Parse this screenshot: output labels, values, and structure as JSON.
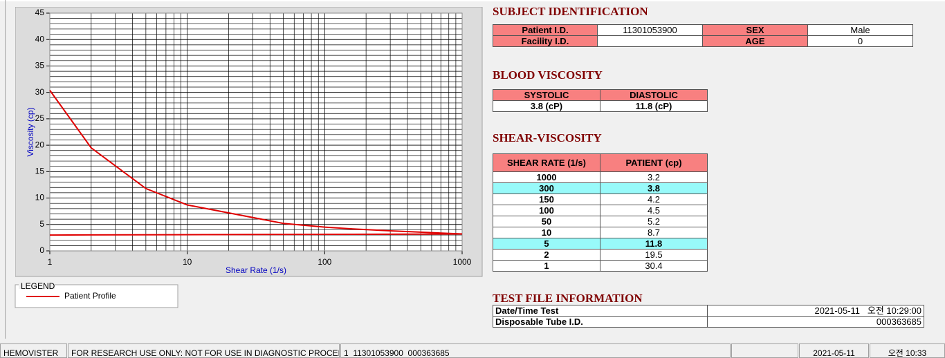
{
  "chart_data": {
    "type": "line",
    "x_label": "Shear Rate (1/s)",
    "y_label": "Viscosity (cp)",
    "xlim": [
      1,
      1000
    ],
    "xticks": [
      1,
      10,
      100,
      1000
    ],
    "xlog": true,
    "ylim": [
      0,
      45
    ],
    "yticks": [
      0,
      5,
      10,
      15,
      20,
      25,
      30,
      35,
      40,
      45
    ],
    "grid": true,
    "minor_grid": true,
    "legend": {
      "title": "LEGEND"
    },
    "series": [
      {
        "name": "Patient Profile",
        "color": "#e00000",
        "x": [
          1,
          2,
          5,
          10,
          50,
          100,
          150,
          300,
          1000
        ],
        "values": [
          30.4,
          19.5,
          11.8,
          8.7,
          5.2,
          4.5,
          4.2,
          3.8,
          3.2
        ]
      },
      {
        "color": "#e00000",
        "x": [
          1,
          1000
        ],
        "values": [
          3.0,
          3.2
        ]
      }
    ]
  },
  "subject": {
    "title": "SUBJECT IDENTIFICATION",
    "rows": [
      [
        "Patient I.D.",
        "11301053900",
        "SEX",
        "Male"
      ],
      [
        "Facility I.D.",
        null,
        "AGE",
        "0"
      ]
    ]
  },
  "blood_viscosity": {
    "title": "BLOOD VISCOSITY",
    "header": [
      "SYSTOLIC",
      "DIASTOLIC"
    ],
    "row": [
      "3.8 (cP)",
      "11.8 (cP)"
    ]
  },
  "shear_viscosity": {
    "title": "SHEAR-VISCOSITY",
    "header": [
      "SHEAR RATE (1/s)",
      "PATIENT (cp)"
    ],
    "rows": [
      [
        "1000",
        "3.2"
      ],
      [
        "300",
        "3.8"
      ],
      [
        "150",
        "4.2"
      ],
      [
        "100",
        "4.5"
      ],
      [
        "50",
        "5.2"
      ],
      [
        "10",
        "8.7"
      ],
      [
        "5",
        "11.8"
      ],
      [
        "2",
        "19.5"
      ],
      [
        "1",
        "30.4"
      ]
    ],
    "highlight_rows": [
      1,
      6
    ],
    "highlight_color": "#98fafa"
  },
  "test_file": {
    "title": "TEST FILE INFORMATION",
    "rows": [
      [
        "Date/Time Test",
        "2021-05-11   오전 10:29:00"
      ],
      [
        "Disposable Tube I.D.",
        "000363685"
      ]
    ]
  },
  "status_bar": [
    "HEMOVISTER",
    "FOR RESEARCH USE ONLY: NOT FOR USE IN DIAGNOSTIC PROCEDURES",
    "1  11301053900  000363685",
    "2021-05-11",
    "오전 10:33"
  ]
}
